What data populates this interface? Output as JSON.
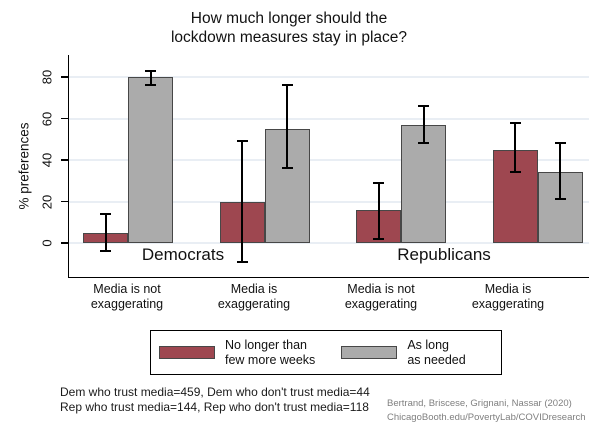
{
  "title": {
    "line1": "How much longer should the",
    "line2": "lockdown measures stay in place?"
  },
  "chart_data": {
    "type": "bar",
    "title": "How much longer should the lockdown measures stay in place?",
    "xlabel": "",
    "ylabel": "% preferences",
    "ylim": [
      -16,
      90
    ],
    "grid": true,
    "legend_position": "bottom",
    "yticks": [
      0,
      20,
      40,
      60,
      80
    ],
    "groups": [
      "Democrats",
      "Republicans"
    ],
    "categories": [
      {
        "line1": "Media is not",
        "line2": "exaggerating",
        "group": "Democrats"
      },
      {
        "line1": "Media is",
        "line2": "exaggerating",
        "group": "Democrats"
      },
      {
        "line1": "Media is not",
        "line2": "exaggerating",
        "group": "Republicans"
      },
      {
        "line1": "Media is",
        "line2": "exaggerating",
        "group": "Republicans"
      }
    ],
    "series": [
      {
        "name": "No longer than few more weeks",
        "color": "#9e4750",
        "values": [
          5,
          20,
          16,
          45
        ],
        "ci_low": [
          -4,
          -9,
          2,
          34
        ],
        "ci_high": [
          14,
          49,
          29,
          58
        ]
      },
      {
        "name": "As long as needed",
        "color": "#ababab",
        "values": [
          80,
          55,
          57,
          34
        ],
        "ci_low": [
          76,
          36,
          48,
          21
        ],
        "ci_high": [
          83,
          76,
          66,
          48
        ]
      }
    ]
  },
  "legend": {
    "items": [
      {
        "line1": "No longer than",
        "line2": "few more weeks",
        "color": "#9e4750"
      },
      {
        "line1": "As long",
        "line2": "as needed",
        "color": "#ababab"
      }
    ]
  },
  "notes": {
    "line1": "Dem who trust media=459, Dem who don't trust media=44",
    "line2": "Rep who trust media=144, Rep who don't trust media=118"
  },
  "credit": {
    "line1": "Bertrand, Briscese, Grignani, Nassar (2020)",
    "line2": "ChicagoBooth.edu/PovertyLab/COVIDresearch"
  },
  "colors": {
    "grid": "#e9eef4",
    "axis": "#000000",
    "bar_border": "#474747",
    "credit_text": "#7f7f7f"
  }
}
